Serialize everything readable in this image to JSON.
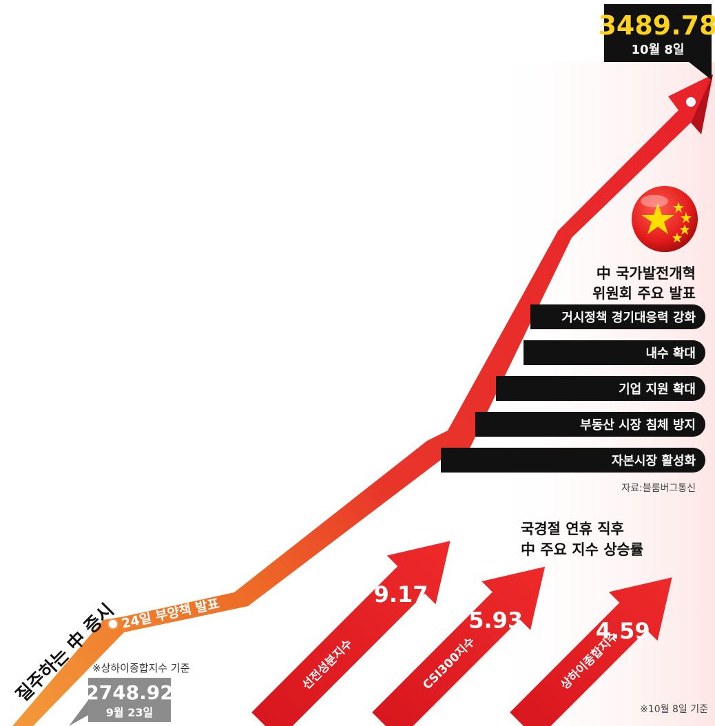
{
  "chart_data": {
    "type": "line",
    "title": "질주하는 中 증시",
    "start": {
      "value": "2748.92",
      "date": "9월 23일",
      "note": "※상하이종합지수 기준"
    },
    "end": {
      "value": "3489.78",
      "date": "10월 8일"
    },
    "annotation": "24일 부양책 발표",
    "announcement": {
      "title": [
        "中 국가발전개혁",
        "위원회 주요 발표"
      ],
      "items": [
        "거시정책 경기대응력 강화",
        "내수 확대",
        "기업 지원 확대",
        "부동산 시장 침체 방지",
        "자본시장 활성화"
      ],
      "source": "자료:블룸버그통신"
    },
    "index_gains": {
      "title": [
        "국경절 연휴 직후",
        "中 주요 지수 상승률"
      ],
      "categories": [
        "선전성분지수",
        "CSI300지수",
        "상하이종합지수"
      ],
      "values": [
        9.17,
        5.93,
        4.59
      ],
      "note": "※10월 8일 기준"
    }
  },
  "colors": {
    "orange": "#ef7a2a",
    "red": "#e8222a",
    "dark_red": "#c8161e",
    "black": "#111111",
    "yellow": "#ffd21e",
    "gray": "#8a8a8a"
  }
}
